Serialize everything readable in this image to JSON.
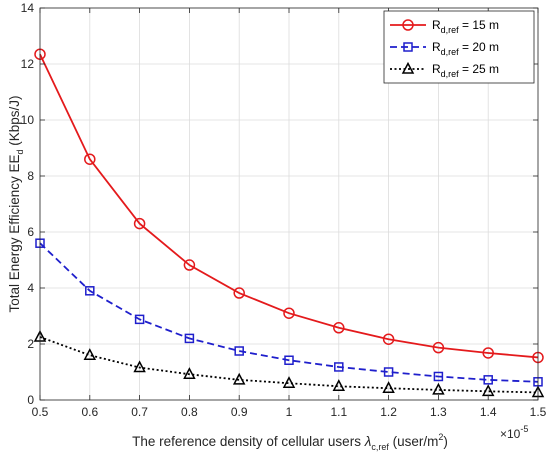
{
  "chart_data": {
    "type": "line",
    "xlabel": {
      "main": "The reference density of cellular users ",
      "symbol": "λ",
      "symbol_sub": "c,ref",
      "unit_pre": " (user/m",
      "unit_sup": "2",
      "unit_post": ")"
    },
    "ylabel": {
      "main": "Total Energy Efficiency EE",
      "sub": "d",
      "unit": " (Kbps/J)"
    },
    "x_exponent": {
      "base": "×10",
      "exp": "-5"
    },
    "xlim": [
      0.5,
      1.5
    ],
    "ylim": [
      0,
      14
    ],
    "x_ticks": [
      "0.5",
      "0.6",
      "0.7",
      "0.8",
      "0.9",
      "1",
      "1.1",
      "1.2",
      "1.3",
      "1.4",
      "1.5"
    ],
    "y_ticks": [
      "0",
      "2",
      "4",
      "6",
      "8",
      "10",
      "12",
      "14"
    ],
    "grid": true,
    "legend_position": "top-right",
    "x": [
      0.5,
      0.6,
      0.7,
      0.8,
      0.9,
      1.0,
      1.1,
      1.2,
      1.3,
      1.4,
      1.5
    ],
    "series": [
      {
        "name_main": "R",
        "name_sub": "d,ref",
        "name_post": " = 15 m",
        "color": "#e41a1c",
        "dash": "solid",
        "marker": "circle",
        "values": [
          12.35,
          8.6,
          6.3,
          4.82,
          3.82,
          3.1,
          2.58,
          2.17,
          1.87,
          1.68,
          1.52
        ]
      },
      {
        "name_main": "R",
        "name_sub": "d,ref",
        "name_post": " = 20 m",
        "color": "#1f1fcc",
        "dash": "dashed",
        "marker": "square",
        "values": [
          5.6,
          3.9,
          2.88,
          2.2,
          1.75,
          1.42,
          1.18,
          1.0,
          0.84,
          0.72,
          0.65
        ]
      },
      {
        "name_main": "R",
        "name_sub": "d,ref",
        "name_post": " = 25 m",
        "color": "#000000",
        "dash": "dotted",
        "marker": "triangle",
        "values": [
          2.25,
          1.6,
          1.16,
          0.92,
          0.72,
          0.6,
          0.49,
          0.42,
          0.36,
          0.31,
          0.27
        ]
      }
    ]
  }
}
